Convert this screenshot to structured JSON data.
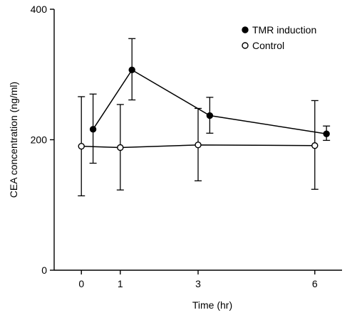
{
  "chart_data": {
    "type": "line",
    "title": "",
    "xlabel": "Time (hr)",
    "ylabel": "CEA concentration (ng/ml)",
    "xlim": [
      -0.7,
      6.7
    ],
    "ylim": [
      0,
      400
    ],
    "xticks": [
      0,
      1,
      3,
      6
    ],
    "yticks": [
      0,
      200,
      400
    ],
    "grid": false,
    "legend_position": "top-right",
    "series": [
      {
        "name": "TMR induction",
        "marker": "filled-circle",
        "color": "#000000",
        "points": [
          {
            "x": 0.3,
            "y": 216,
            "err_low": 164,
            "err_high": 270
          },
          {
            "x": 1.3,
            "y": 307,
            "err_low": 261,
            "err_high": 355
          },
          {
            "x": 3.3,
            "y": 237,
            "err_low": 210,
            "err_high": 265
          },
          {
            "x": 6.3,
            "y": 209,
            "err_low": 199,
            "err_high": 221
          }
        ]
      },
      {
        "name": "Control",
        "marker": "open-circle",
        "color": "#000000",
        "points": [
          {
            "x": 0,
            "y": 190,
            "err_low": 114,
            "err_high": 266
          },
          {
            "x": 1,
            "y": 188,
            "err_low": 123,
            "err_high": 254
          },
          {
            "x": 3,
            "y": 192,
            "err_low": 137,
            "err_high": 248
          },
          {
            "x": 6,
            "y": 191,
            "err_low": 124,
            "err_high": 260
          }
        ]
      }
    ]
  }
}
